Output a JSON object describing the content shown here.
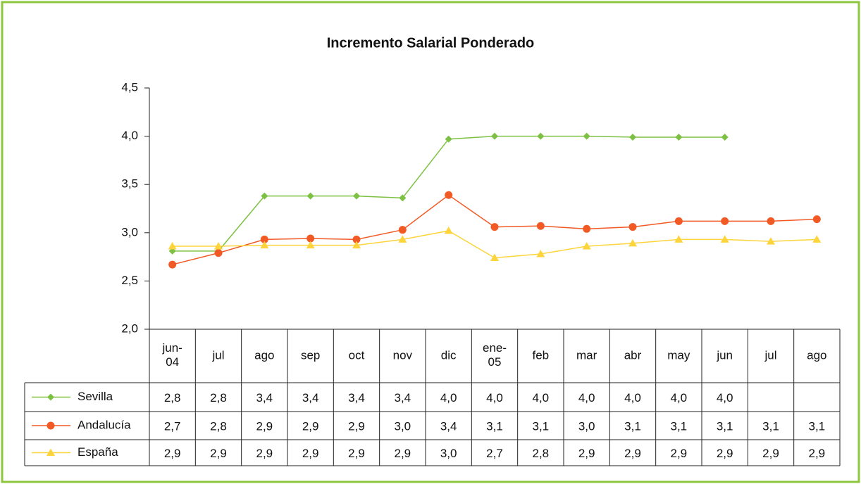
{
  "chart_data": {
    "type": "line",
    "title": "Incremento Salarial Ponderado",
    "categories": [
      "jun-04",
      "jul",
      "ago",
      "sep",
      "oct",
      "nov",
      "dic",
      "ene-05",
      "feb",
      "mar",
      "abr",
      "may",
      "jun",
      "jul",
      "ago"
    ],
    "ylim": [
      2.0,
      4.5
    ],
    "yticks": [
      {
        "value": 2.0,
        "label": "2,0"
      },
      {
        "value": 2.5,
        "label": "2,5"
      },
      {
        "value": 3.0,
        "label": "3,0"
      },
      {
        "value": 3.5,
        "label": "3,5"
      },
      {
        "value": 4.0,
        "label": "4,0"
      },
      {
        "value": 4.5,
        "label": "4,5"
      }
    ],
    "series": [
      {
        "name": "Sevilla",
        "color": "#7cc142",
        "marker": "diamond",
        "values": [
          2.81,
          2.81,
          3.38,
          3.38,
          3.38,
          3.36,
          3.97,
          4.0,
          4.0,
          4.0,
          3.99,
          3.99,
          3.99,
          null,
          null
        ],
        "value_labels": [
          "2,8",
          "2,8",
          "3,4",
          "3,4",
          "3,4",
          "3,4",
          "4,0",
          "4,0",
          "4,0",
          "4,0",
          "4,0",
          "4,0",
          "4,0",
          null,
          null
        ]
      },
      {
        "name": "Andalucía",
        "color": "#f15a24",
        "marker": "circle",
        "values": [
          2.67,
          2.79,
          2.93,
          2.94,
          2.93,
          3.03,
          3.39,
          3.06,
          3.07,
          3.04,
          3.06,
          3.12,
          3.12,
          3.12,
          3.14
        ],
        "value_labels": [
          "2,7",
          "2,8",
          "2,9",
          "2,9",
          "2,9",
          "3,0",
          "3,4",
          "3,1",
          "3,1",
          "3,0",
          "3,1",
          "3,1",
          "3,1",
          "3,1",
          "3,1"
        ]
      },
      {
        "name": "España",
        "color": "#fdd43c",
        "marker": "triangle",
        "values": [
          2.86,
          2.86,
          2.87,
          2.87,
          2.87,
          2.93,
          3.02,
          2.74,
          2.78,
          2.86,
          2.89,
          2.93,
          2.93,
          2.91,
          2.93
        ],
        "value_labels": [
          "2,9",
          "2,9",
          "2,9",
          "2,9",
          "2,9",
          "2,9",
          "3,0",
          "2,7",
          "2,8",
          "2,9",
          "2,9",
          "2,9",
          "2,9",
          "2,9",
          "2,9"
        ]
      }
    ]
  }
}
